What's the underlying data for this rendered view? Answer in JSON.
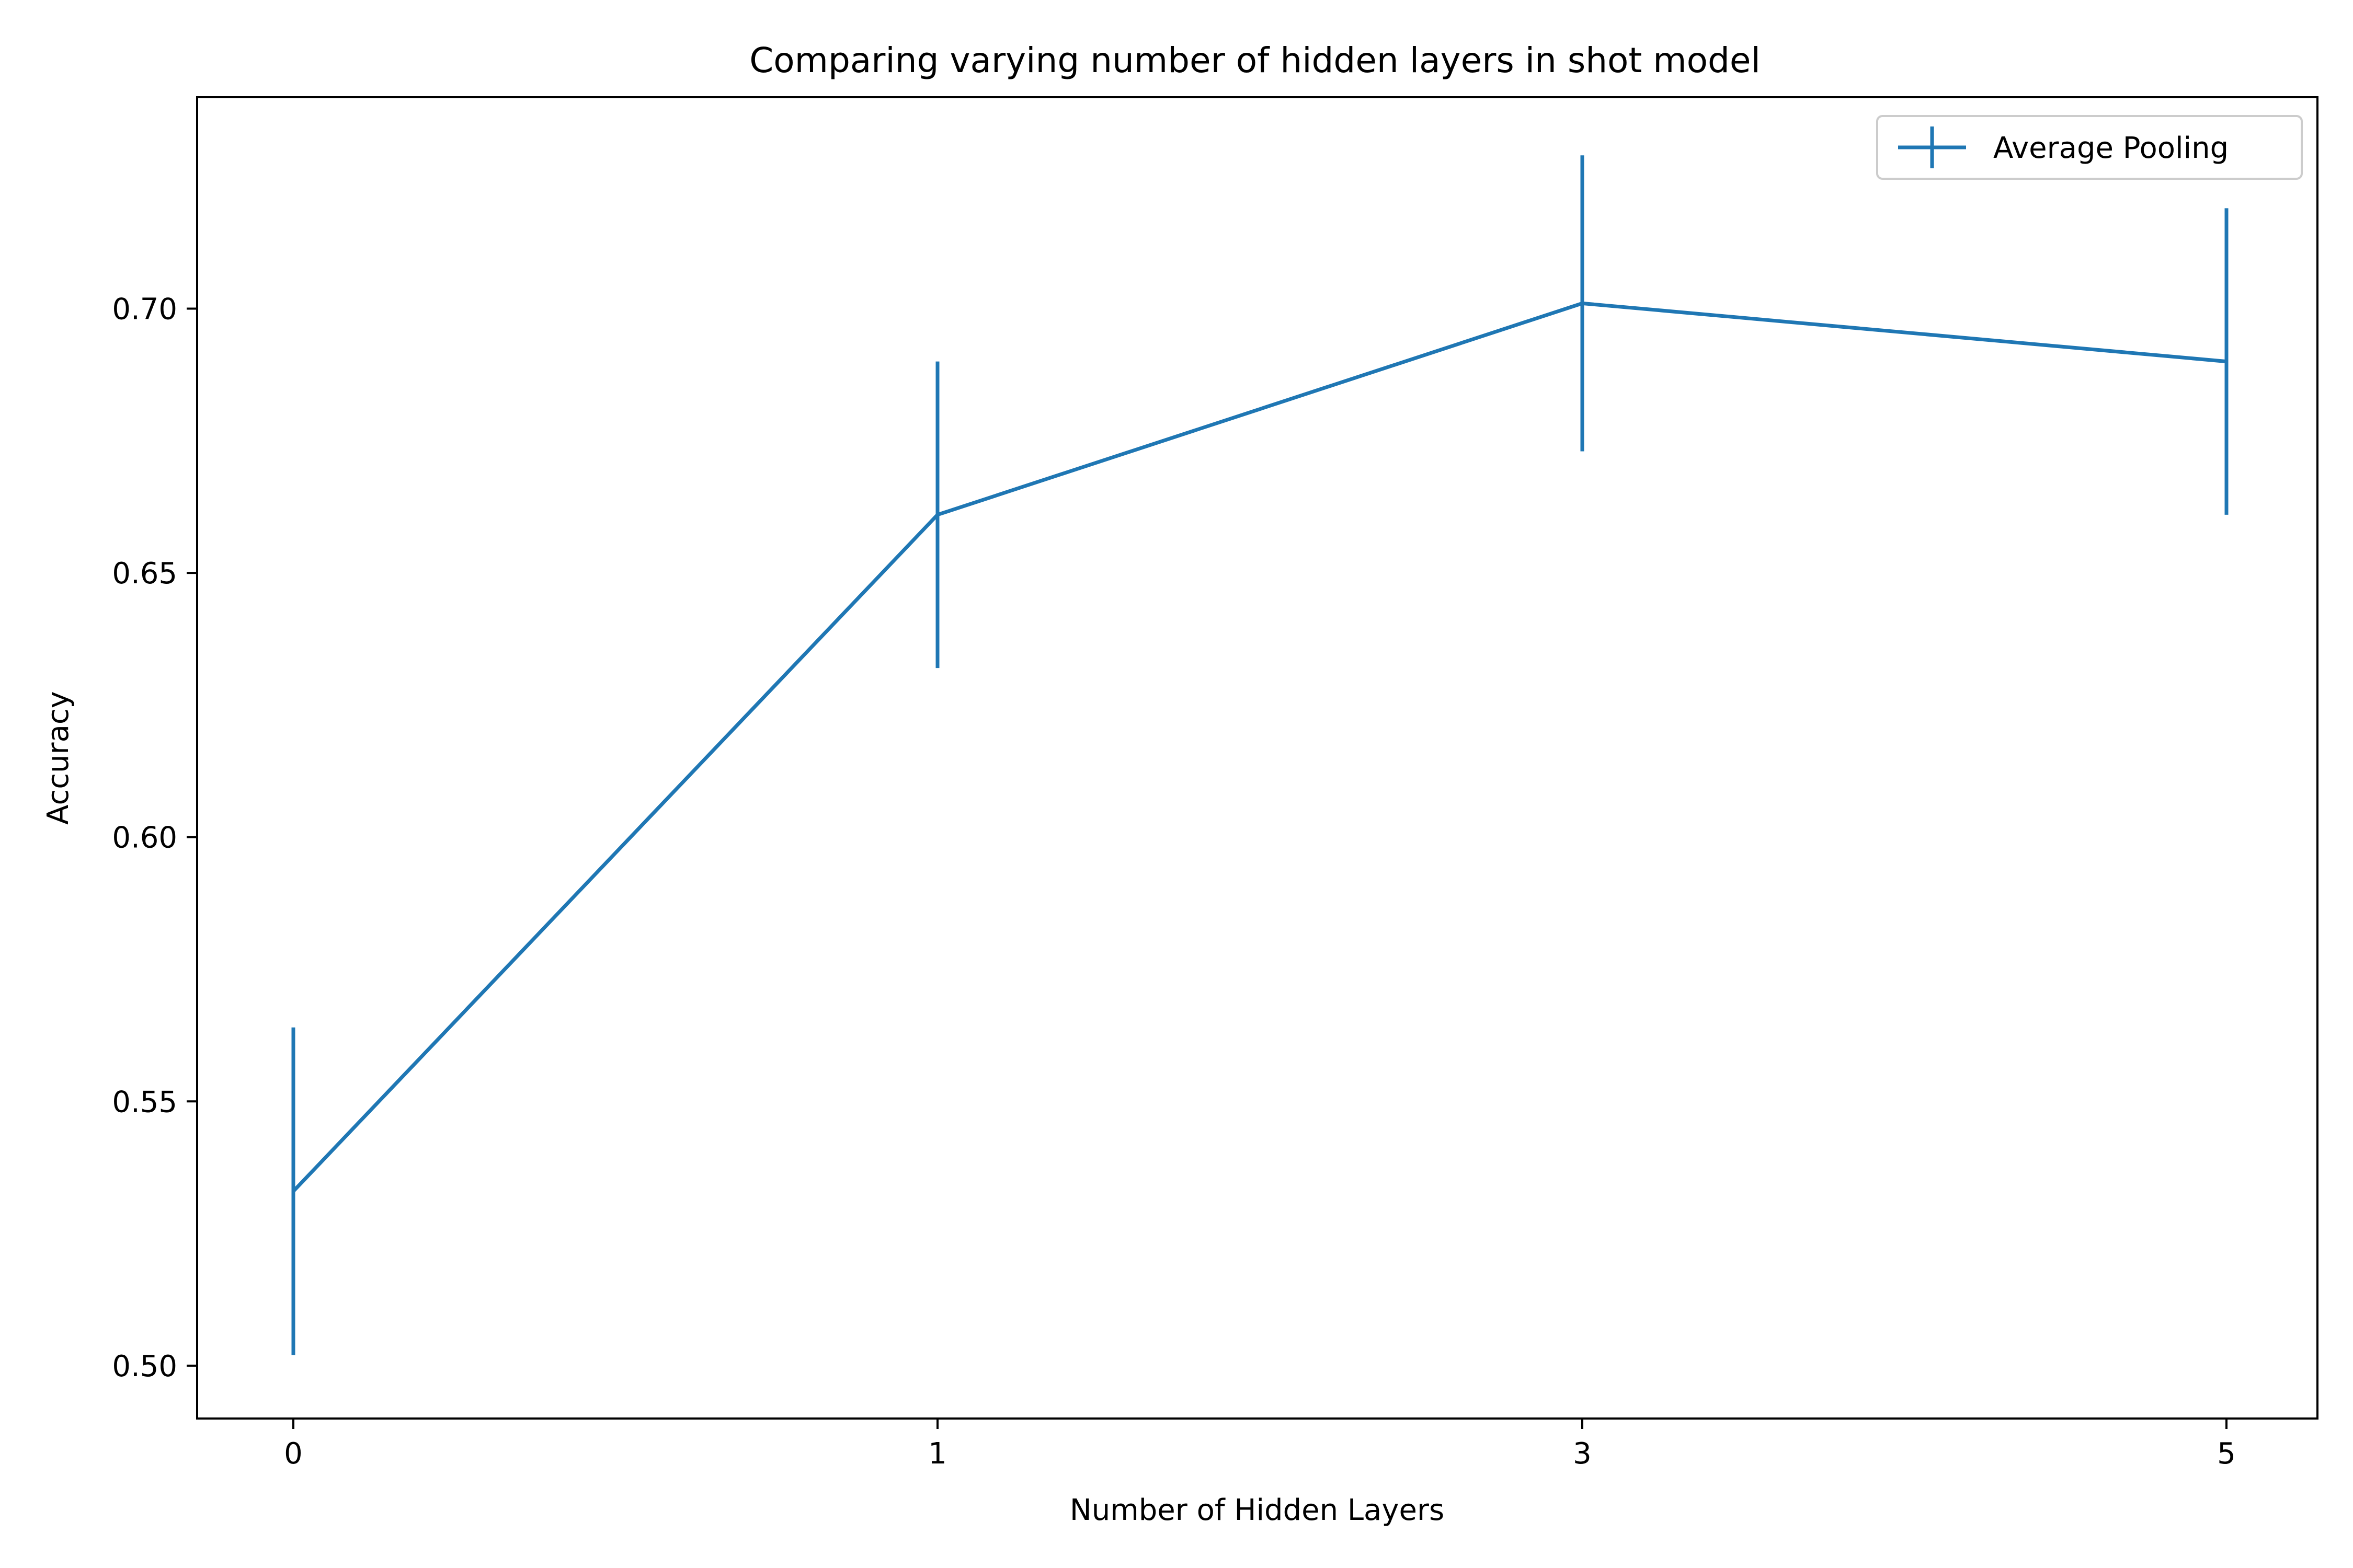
{
  "chart_data": {
    "type": "line",
    "title": "Comparing varying number of hidden layers in shot model",
    "xlabel": "Number of Hidden Layers",
    "ylabel": "Accuracy",
    "categories": [
      "0",
      "1",
      "3",
      "5"
    ],
    "series": [
      {
        "name": "Average Pooling",
        "values": [
          0.533,
          0.661,
          0.701,
          0.69
        ],
        "error": [
          0.031,
          0.029,
          0.028,
          0.029
        ],
        "color": "#1f77b4"
      }
    ],
    "ylim": [
      0.49,
      0.74
    ],
    "yticks": [
      0.5,
      0.55,
      0.6,
      0.65,
      0.7
    ],
    "ytick_labels": [
      "0.50",
      "0.55",
      "0.60",
      "0.65",
      "0.70"
    ],
    "grid": false,
    "legend_position": "top-right"
  }
}
